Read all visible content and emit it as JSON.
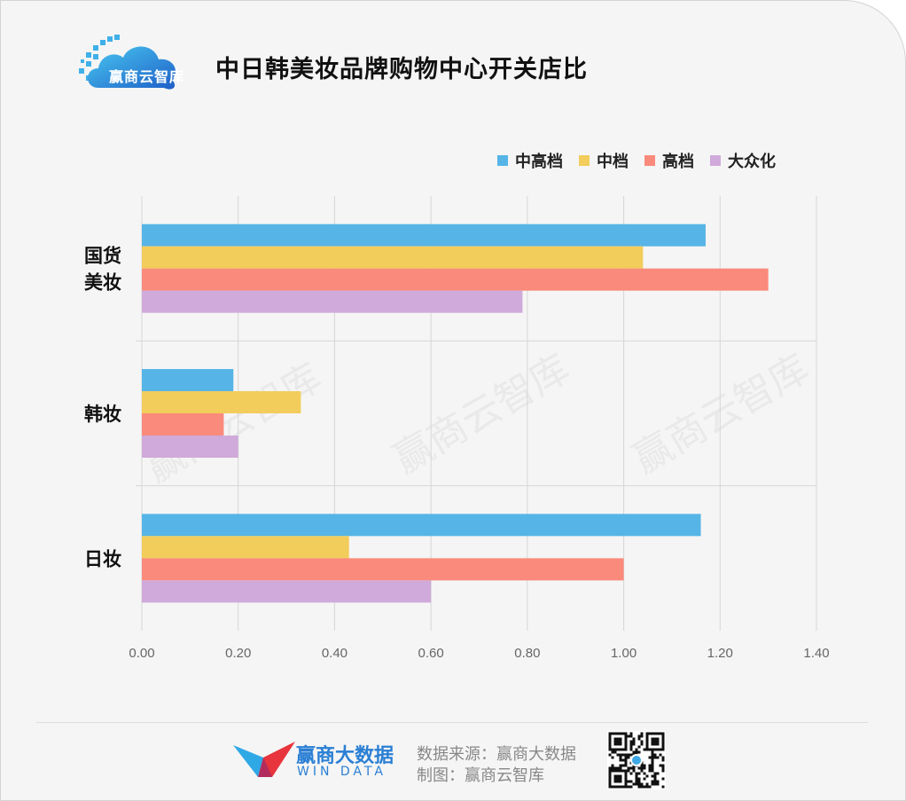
{
  "header": {
    "logo_text": "赢商云智库",
    "title": "中日韩美妆品牌购物中心开关店比"
  },
  "chart_data": {
    "type": "bar",
    "orientation": "horizontal",
    "title": "中日韩美妆品牌购物中心开关店比",
    "categories": [
      "国货美妆",
      "韩妆",
      "日妆"
    ],
    "category_lines": [
      [
        "国货",
        "美妆"
      ],
      [
        "韩妆"
      ],
      [
        "日妆"
      ]
    ],
    "series": [
      {
        "name": "中高档",
        "color": "#56b5e6",
        "values": [
          1.17,
          0.19,
          1.16
        ]
      },
      {
        "name": "中档",
        "color": "#f2cd5c",
        "values": [
          1.04,
          0.33,
          0.43
        ]
      },
      {
        "name": "高档",
        "color": "#fa8a7b",
        "values": [
          1.3,
          0.17,
          1.0
        ]
      },
      {
        "name": "大众化",
        "color": "#cfaada",
        "values": [
          0.79,
          0.2,
          0.6
        ]
      }
    ],
    "xlim": [
      0,
      1.4
    ],
    "xticks": [
      "0.00",
      "0.20",
      "0.40",
      "0.60",
      "0.80",
      "1.00",
      "1.20",
      "1.40"
    ],
    "grid": true,
    "legend_position": "top-right"
  },
  "watermark": "赢商云智库",
  "footer": {
    "brand_cn": "赢商大数据",
    "brand_en": "WIN DATA",
    "source": "数据来源：赢商大数据",
    "made_by": "制图：赢商云智库"
  },
  "icons": {
    "logo": "cloud-logo-icon",
    "brand": "windata-wing-icon",
    "qr": "qr-code-icon"
  }
}
